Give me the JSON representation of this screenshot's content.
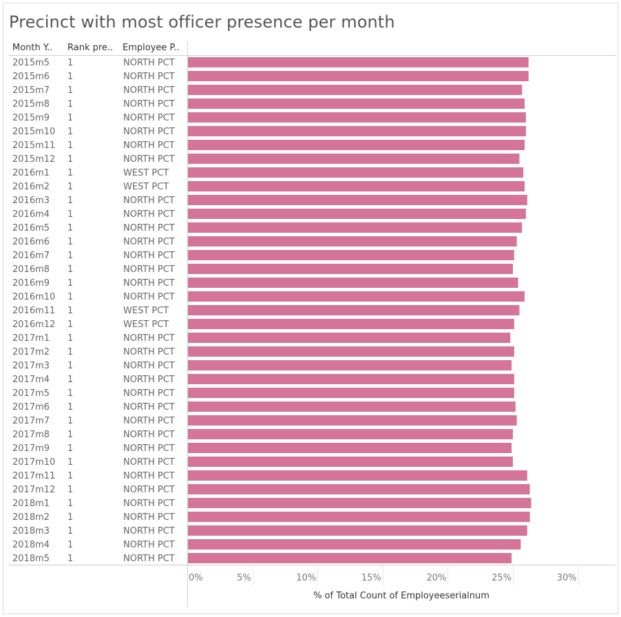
{
  "chart_data": {
    "type": "bar",
    "orientation": "horizontal",
    "title": "Precinct with most officer presence per month",
    "row_headers": [
      "Month Y..",
      "Rank pre..",
      "Employee P.."
    ],
    "categories": [
      "2015m5",
      "2015m6",
      "2015m7",
      "2015m8",
      "2015m9",
      "2015m10",
      "2015m11",
      "2015m12",
      "2016m1",
      "2016m2",
      "2016m3",
      "2016m4",
      "2016m5",
      "2016m6",
      "2016m7",
      "2016m8",
      "2016m9",
      "2016m10",
      "2016m11",
      "2016m12",
      "2017m1",
      "2017m2",
      "2017m3",
      "2017m4",
      "2017m5",
      "2017m6",
      "2017m7",
      "2017m8",
      "2017m9",
      "2017m10",
      "2017m11",
      "2017m12",
      "2018m1",
      "2018m2",
      "2018m3",
      "2018m4",
      "2018m5"
    ],
    "rank": [
      "1",
      "1",
      "1",
      "1",
      "1",
      "1",
      "1",
      "1",
      "1",
      "1",
      "1",
      "1",
      "1",
      "1",
      "1",
      "1",
      "1",
      "1",
      "1",
      "1",
      "1",
      "1",
      "1",
      "1",
      "1",
      "1",
      "1",
      "1",
      "1",
      "1",
      "1",
      "1",
      "1",
      "1",
      "1",
      "1",
      "1"
    ],
    "precinct": [
      "NORTH PCT",
      "NORTH PCT",
      "NORTH PCT",
      "NORTH PCT",
      "NORTH PCT",
      "NORTH PCT",
      "NORTH PCT",
      "NORTH PCT",
      "WEST PCT",
      "WEST PCT",
      "NORTH PCT",
      "NORTH PCT",
      "NORTH PCT",
      "NORTH PCT",
      "NORTH PCT",
      "NORTH PCT",
      "NORTH PCT",
      "NORTH PCT",
      "WEST PCT",
      "WEST PCT",
      "NORTH PCT",
      "NORTH PCT",
      "NORTH PCT",
      "NORTH PCT",
      "NORTH PCT",
      "NORTH PCT",
      "NORTH PCT",
      "NORTH PCT",
      "NORTH PCT",
      "NORTH PCT",
      "NORTH PCT",
      "NORTH PCT",
      "NORTH PCT",
      "NORTH PCT",
      "NORTH PCT",
      "NORTH PCT",
      "NORTH PCT"
    ],
    "values": [
      26.2,
      26.2,
      25.7,
      25.9,
      26.0,
      26.0,
      25.9,
      25.5,
      25.8,
      25.9,
      26.1,
      26.0,
      25.7,
      25.3,
      25.1,
      25.0,
      25.4,
      25.9,
      25.5,
      25.1,
      24.8,
      25.1,
      24.9,
      25.1,
      25.1,
      25.2,
      25.3,
      25.0,
      24.9,
      25.0,
      26.1,
      26.3,
      26.4,
      26.3,
      26.1,
      25.6,
      24.9
    ],
    "xlabel": "% of Total Count of Employeeserialnum",
    "xlim": [
      0,
      32
    ],
    "xticks": [
      0,
      5,
      10,
      15,
      20,
      25,
      30
    ],
    "tick_labels": [
      "0%",
      "5%",
      "10%",
      "15%",
      "20%",
      "25%",
      "30%"
    ],
    "grid": true,
    "bar_color": "#d47597",
    "gridline_color": "#e6e6e6"
  }
}
